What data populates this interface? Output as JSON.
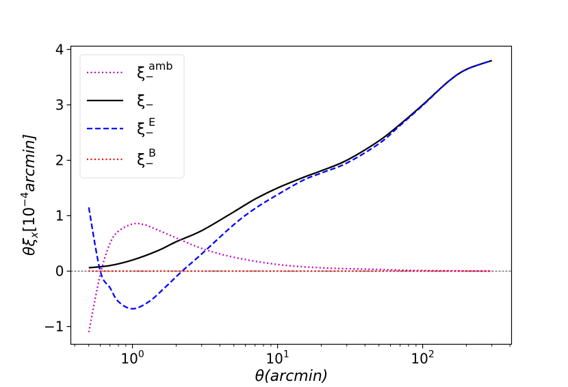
{
  "chart_data": {
    "type": "line",
    "xscale": "log",
    "xlabel": {
      "sym": "θ",
      "rest": "(arcmin)"
    },
    "ylabel": {
      "theta": "θξ",
      "sub": "x",
      "open": "[10",
      "sup": "−4",
      "unit": "arcmin]"
    },
    "xlim": [
      0.376,
      410
    ],
    "ylim": [
      -1.32,
      4.06
    ],
    "yticks": [
      -1,
      0,
      1,
      2,
      3,
      4
    ],
    "ytick_labels": [
      "−1",
      "0",
      "1",
      "2",
      "3",
      "4"
    ],
    "xticks": [
      {
        "base": "10",
        "exp": "0",
        "value": 1
      },
      {
        "base": "10",
        "exp": "1",
        "value": 10
      },
      {
        "base": "10",
        "exp": "2",
        "value": 100
      }
    ],
    "hline": 0,
    "legend_position": "top-left",
    "series": [
      {
        "name": "xi_minus_amb",
        "label": {
          "sym": "ξ",
          "sup": "amb",
          "sub": "−"
        },
        "color": "#bf00bf",
        "style": "dotted",
        "x": [
          0.5,
          0.6,
          0.7,
          0.8,
          1,
          1.2,
          1.5,
          2,
          3,
          5,
          10,
          20,
          50,
          100,
          300
        ],
        "y": [
          -1.1,
          -0.06,
          0.5,
          0.72,
          0.85,
          0.84,
          0.74,
          0.6,
          0.41,
          0.25,
          0.12,
          0.06,
          0.03,
          0.01,
          0
        ]
      },
      {
        "name": "xi_minus",
        "label": {
          "sym": "ξ",
          "sup": "",
          "sub": "−"
        },
        "color": "#000000",
        "style": "solid",
        "x": [
          0.5,
          0.7,
          1,
          1.5,
          2,
          3,
          5,
          7,
          10,
          15,
          20,
          30,
          50,
          70,
          100,
          150,
          200,
          300
        ],
        "y": [
          0.06,
          0.1,
          0.2,
          0.37,
          0.53,
          0.73,
          1.07,
          1.3,
          1.5,
          1.69,
          1.81,
          2.0,
          2.35,
          2.65,
          3.0,
          3.42,
          3.64,
          3.8
        ]
      },
      {
        "name": "xi_minus_E",
        "label": {
          "sym": "ξ",
          "sup": "E",
          "sub": "−"
        },
        "color": "#0000ff",
        "style": "dashed",
        "x": [
          0.5,
          0.6,
          0.7,
          0.8,
          1,
          1.3,
          1.7,
          2.2,
          3,
          5,
          7,
          10,
          15,
          20,
          30,
          50,
          70,
          100,
          150,
          200,
          300
        ],
        "y": [
          1.15,
          0,
          -0.3,
          -0.55,
          -0.68,
          -0.55,
          -0.28,
          0,
          0.31,
          0.84,
          1.13,
          1.38,
          1.64,
          1.77,
          1.95,
          2.3,
          2.63,
          2.99,
          3.42,
          3.64,
          3.8
        ]
      },
      {
        "name": "xi_minus_B",
        "label": {
          "sym": "ξ",
          "sup": "B",
          "sub": "−"
        },
        "color": "#ff0000",
        "style": "dotted",
        "x": [
          0.5,
          300
        ],
        "y": [
          0,
          0
        ]
      }
    ]
  }
}
